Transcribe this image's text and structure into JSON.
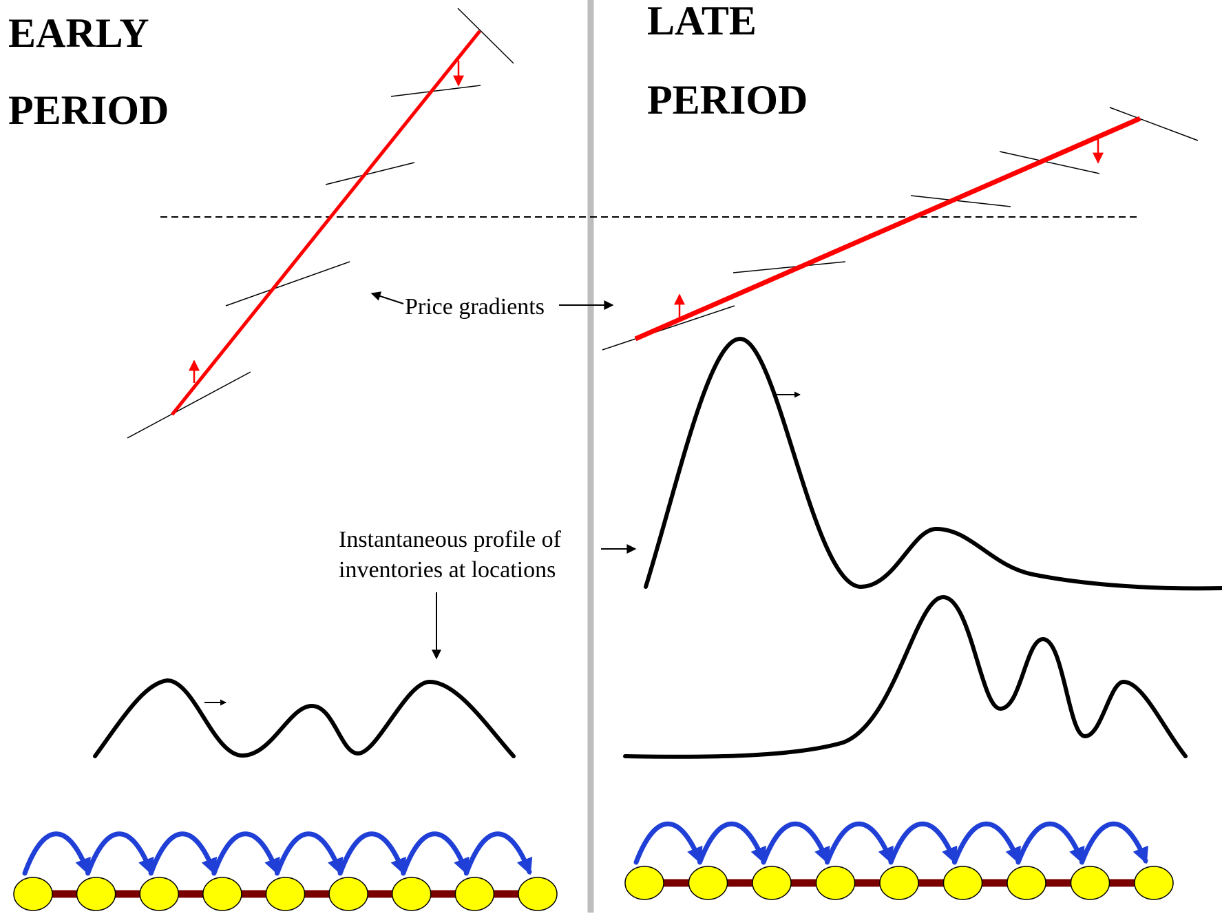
{
  "early": {
    "title_line1": "EARLY",
    "title_line2": "PERIOD"
  },
  "late": {
    "title_line1": "LATE",
    "title_line2": "PERIOD"
  },
  "annotations": {
    "price_gradients": "Price gradients",
    "inventory_line1": "Instantaneous profile of",
    "inventory_line2": "inventories at locations"
  },
  "colors": {
    "gradient_line": "#ff0000",
    "divider": "#bdbdbd",
    "transfer_arrow": "#1f3fd6",
    "location_node": "#ffff00",
    "location_link": "#7a0000",
    "curve": "#000000"
  },
  "network": {
    "early_locations": 9,
    "late_locations": 9
  }
}
